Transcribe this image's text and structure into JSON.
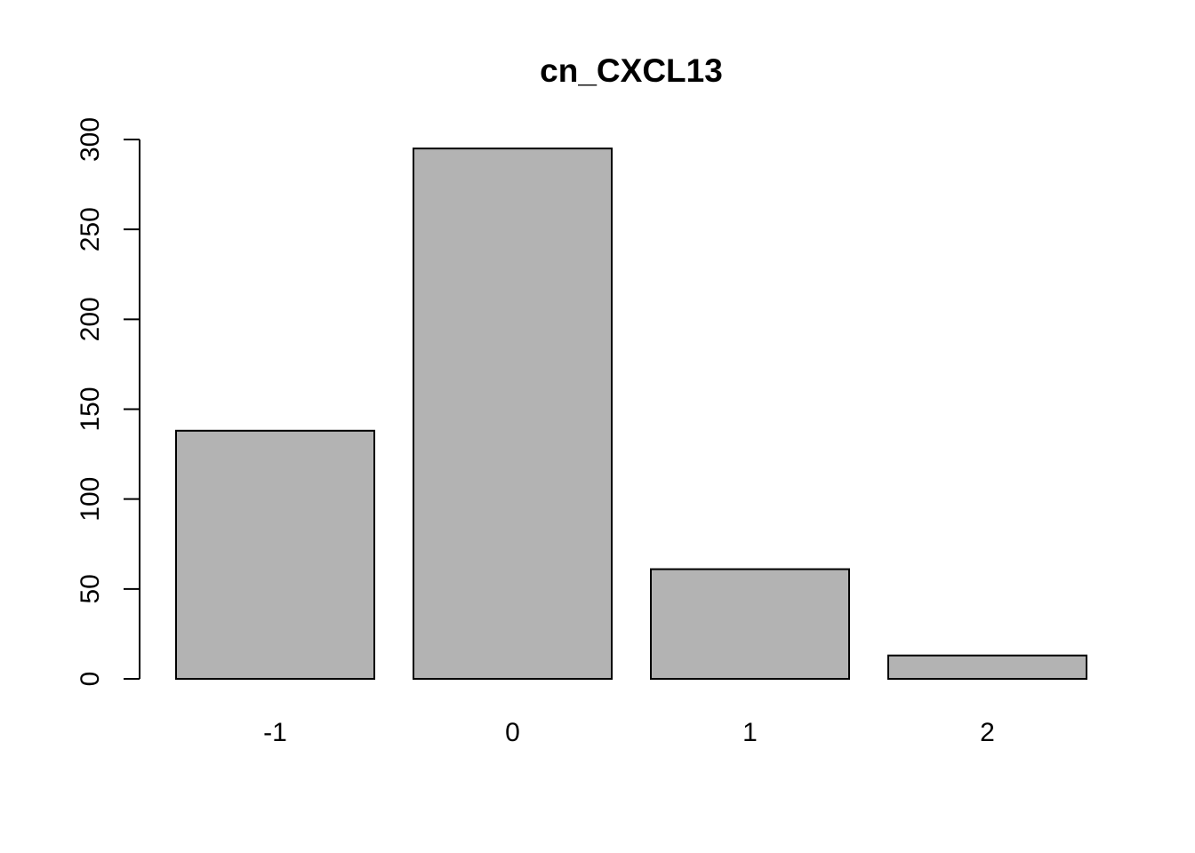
{
  "chart_data": {
    "type": "bar",
    "title": "cn_CXCL13",
    "xlabel": "",
    "ylabel": "",
    "categories": [
      "-1",
      "0",
      "1",
      "2"
    ],
    "values": [
      138,
      295,
      61,
      13
    ],
    "ylim": [
      0,
      300
    ],
    "yticks": [
      0,
      50,
      100,
      150,
      200,
      250,
      300
    ],
    "ytick_labels": [
      "0",
      "50",
      "100",
      "150",
      "200",
      "250",
      "300"
    ],
    "grid": false,
    "legend": "none",
    "bar_fill": "#b3b3b3",
    "bar_stroke": "#000000"
  }
}
